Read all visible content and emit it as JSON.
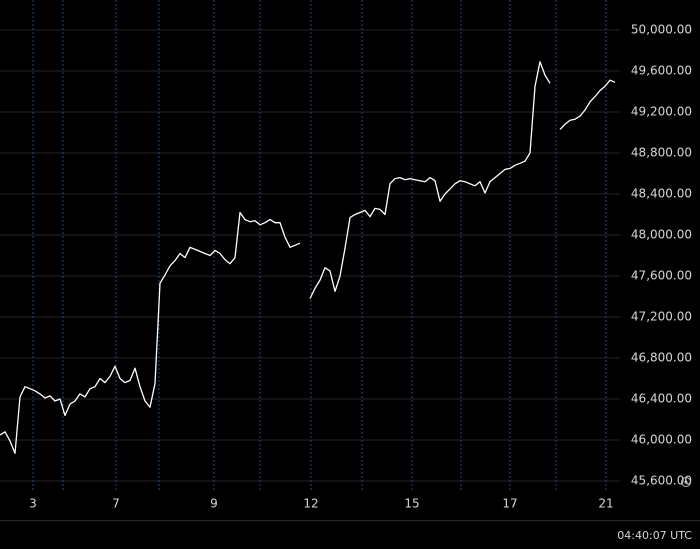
{
  "chart_data": {
    "type": "line",
    "color": "#ffffff",
    "grid": true,
    "xlim": [
      0,
      124
    ],
    "xticks": [
      {
        "value": 6.6,
        "label": "3"
      },
      {
        "value": 12.6,
        "label": null
      },
      {
        "value": 23.2,
        "label": "7"
      },
      {
        "value": 31.8,
        "label": null
      },
      {
        "value": 42.8,
        "label": "9"
      },
      {
        "value": 52,
        "label": null
      },
      {
        "value": 62.2,
        "label": "12"
      },
      {
        "value": 72.4,
        "label": null
      },
      {
        "value": 82.4,
        "label": "15"
      },
      {
        "value": 92.2,
        "label": null
      },
      {
        "value": 102,
        "label": "17"
      },
      {
        "value": 111.2,
        "label": null
      },
      {
        "value": 121.2,
        "label": "21"
      }
    ],
    "ylim": [
      45512,
      50293
    ],
    "yticks": [
      {
        "value": 45600,
        "label": "45,600.00"
      },
      {
        "value": 46000,
        "label": "46,000.00"
      },
      {
        "value": 46400,
        "label": "46,400.00"
      },
      {
        "value": 46800,
        "label": "46,800.00"
      },
      {
        "value": 47200,
        "label": "47,200.00"
      },
      {
        "value": 47600,
        "label": "47,600.00"
      },
      {
        "value": 48000,
        "label": "48,000.00"
      },
      {
        "value": 48400,
        "label": "48,400.00"
      },
      {
        "value": 48800,
        "label": "48,800.00"
      },
      {
        "value": 49200,
        "label": "49,200.00"
      },
      {
        "value": 49600,
        "label": "49,600.00"
      },
      {
        "value": 50000,
        "label": "50,000.00"
      }
    ],
    "x": [
      0,
      1,
      2,
      3,
      4,
      5,
      6,
      7,
      8,
      9,
      10,
      11,
      12,
      13,
      14,
      15,
      16,
      17,
      18,
      19,
      20,
      21,
      22,
      23,
      24,
      25,
      26,
      27,
      28,
      29,
      30,
      31,
      32,
      33,
      34,
      35,
      36,
      37,
      38,
      39,
      40,
      41,
      42,
      43,
      44,
      45,
      46,
      47,
      48,
      49,
      50,
      51,
      52,
      53,
      54,
      55,
      56,
      57,
      58,
      59,
      60,
      61,
      62,
      63,
      64,
      65,
      66,
      67,
      68,
      69,
      70,
      71,
      72,
      73,
      74,
      75,
      76,
      77,
      78,
      79,
      80,
      81,
      82,
      83,
      84,
      85,
      86,
      87,
      88,
      89,
      90,
      91,
      92,
      93,
      94,
      95,
      96,
      97,
      98,
      99,
      100,
      101,
      102,
      103,
      104,
      105,
      106,
      107,
      108,
      109,
      110,
      111,
      112,
      113,
      114,
      115,
      116,
      117,
      118,
      119,
      120,
      121,
      122,
      123
    ],
    "values": [
      46050,
      46080,
      45990,
      45870,
      46420,
      46520,
      46500,
      46480,
      46450,
      46410,
      46430,
      46380,
      46400,
      46240,
      46350,
      46380,
      46450,
      46420,
      46500,
      46520,
      46600,
      46560,
      46620,
      46720,
      46600,
      46560,
      46580,
      46700,
      46520,
      46380,
      46320,
      46550,
      47530,
      47610,
      47700,
      47750,
      47820,
      47780,
      47880,
      47860,
      47840,
      47820,
      47800,
      47850,
      47820,
      47760,
      47720,
      47780,
      48220,
      48150,
      48130,
      48140,
      48100,
      48120,
      48150,
      48120,
      48120,
      47980,
      47880,
      47900,
      47920,
      null,
      47380,
      47480,
      47560,
      47680,
      47650,
      47450,
      47600,
      47870,
      48170,
      48200,
      48220,
      48240,
      48180,
      48260,
      48250,
      48200,
      48500,
      48550,
      48560,
      48540,
      48550,
      48540,
      48530,
      48520,
      48560,
      48530,
      48330,
      48400,
      48450,
      48500,
      48530,
      48520,
      48500,
      48480,
      48520,
      48410,
      48520,
      48560,
      48600,
      48640,
      48650,
      48680,
      48700,
      48720,
      48800,
      49450,
      49690,
      49560,
      49480,
      null,
      49030,
      49080,
      49120,
      49130,
      49160,
      49220,
      49300,
      49350,
      49410,
      49450,
      49510,
      49490
    ]
  },
  "footer": {
    "time": "04:40:07 UTC"
  }
}
